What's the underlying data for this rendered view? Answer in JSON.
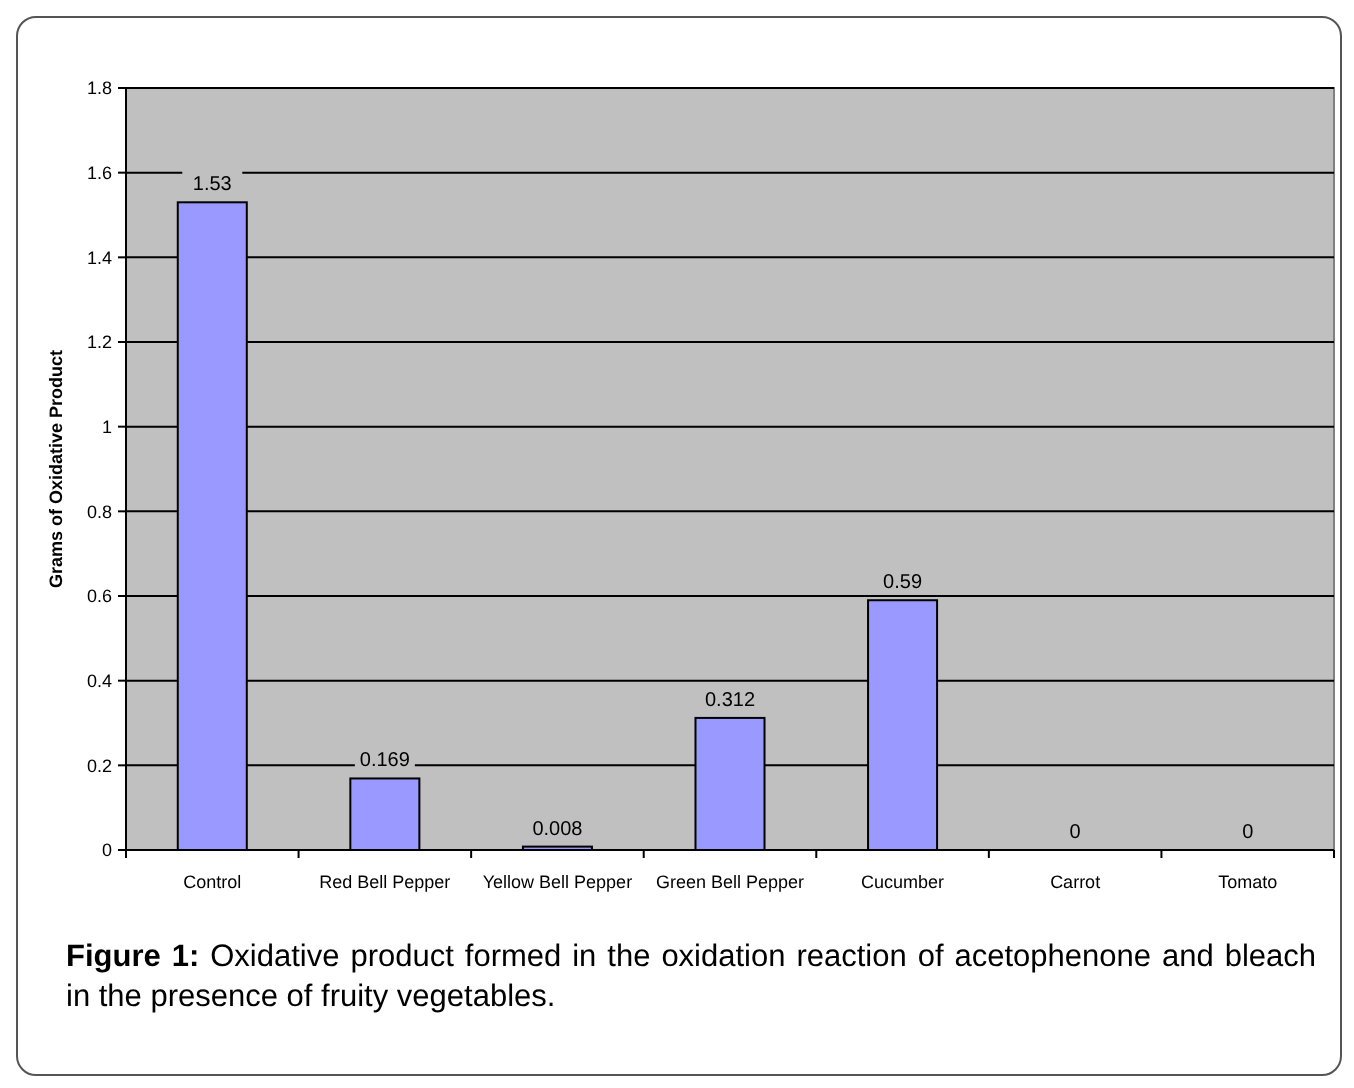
{
  "chart_data": {
    "type": "bar",
    "ylabel": "Grams of Oxidative Product",
    "categories": [
      "Control",
      "Red Bell Pepper",
      "Yellow Bell Pepper",
      "Green Bell Pepper",
      "Cucumber",
      "Carrot",
      "Tomato"
    ],
    "values": [
      1.53,
      0.169,
      0.008,
      0.312,
      0.59,
      0,
      0
    ],
    "color": "#9999ff",
    "ylim": [
      0,
      1.8
    ],
    "yticks": [
      0,
      0.2,
      0.4,
      0.6,
      0.8,
      1,
      1.2,
      1.4,
      1.6,
      1.8
    ],
    "grid": "y",
    "data_labels": true,
    "annotations": [
      "Figure 1: Oxidative product formed in the oxidation reaction of acetophenone and bleach in the presence of fruity vegetables."
    ]
  }
}
